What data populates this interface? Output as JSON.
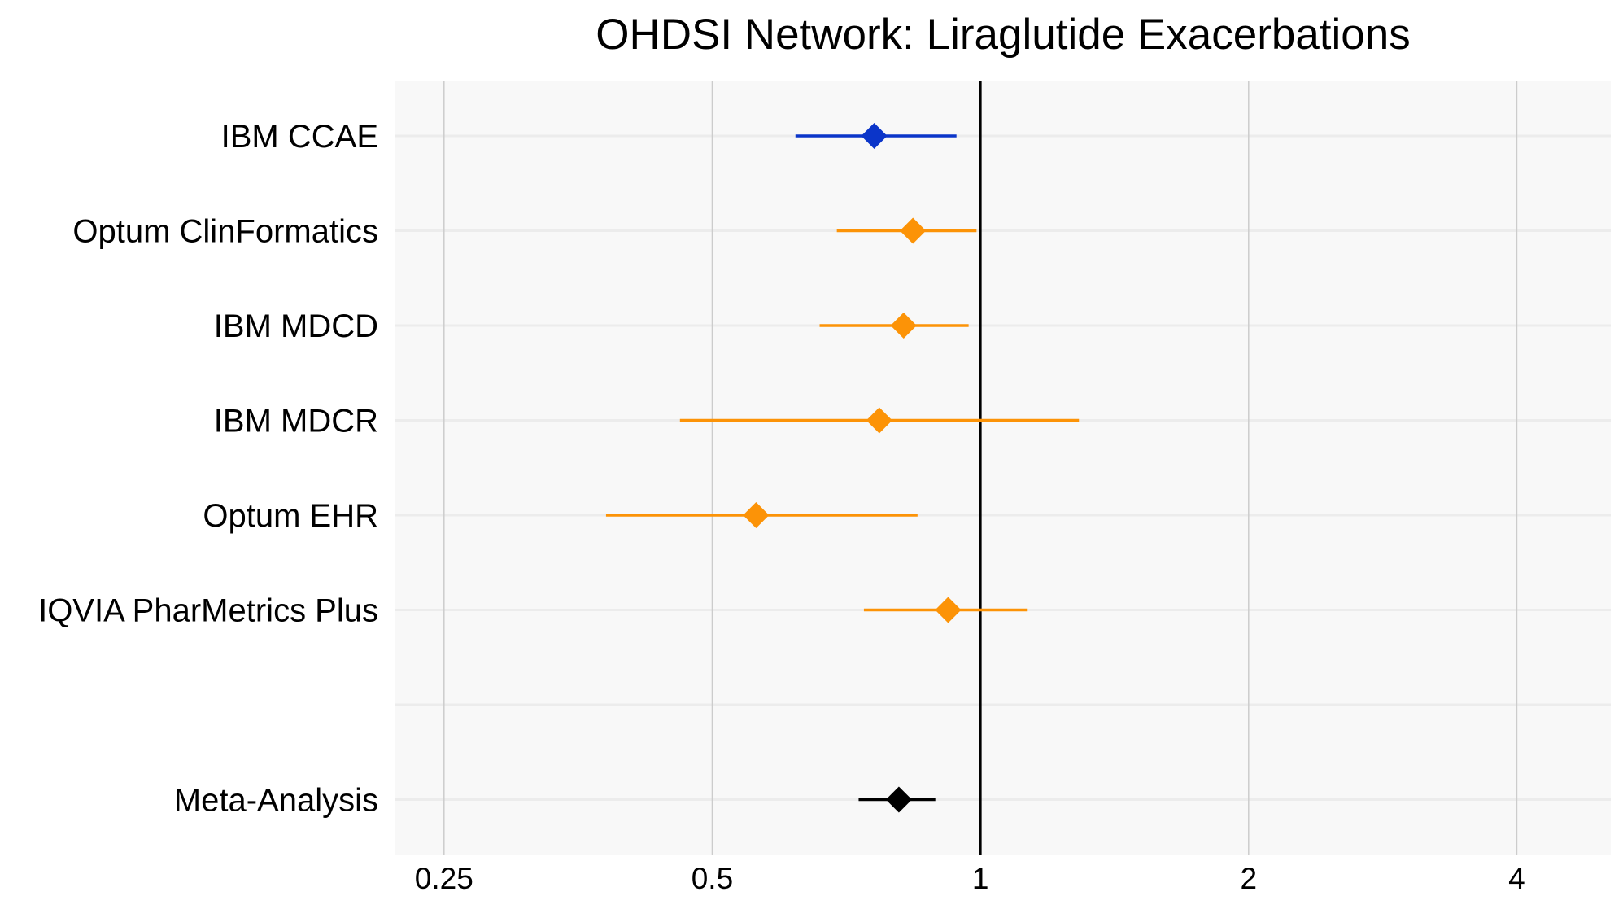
{
  "chart_data": {
    "type": "forest",
    "title": "OHDSI Network: Liraglutide Exacerbations",
    "xlabel": "",
    "ylabel": "",
    "x_scale": "log2",
    "xlim": [
      0.22,
      5.1
    ],
    "x_ticks": [
      0.25,
      0.5,
      1,
      2,
      4
    ],
    "x_tick_labels": [
      "0.25",
      "0.5",
      "1",
      "2",
      "4"
    ],
    "reference_line": 1,
    "grid": true,
    "legend": "none",
    "colors": {
      "highlight": "#0b35c9",
      "database": "#fc9307",
      "meta": "#000000",
      "panel_background": "#f8f8f8",
      "grid_major": "#cccccc",
      "grid_row": "#ececec",
      "reference": "#000000"
    },
    "rows": [
      {
        "label": "IBM CCAE",
        "estimate": 0.76,
        "lower": 0.62,
        "upper": 0.94,
        "color": "#0b35c9"
      },
      {
        "label": "Optum ClinFormatics",
        "estimate": 0.84,
        "lower": 0.69,
        "upper": 0.99,
        "color": "#fc9307"
      },
      {
        "label": "IBM MDCD",
        "estimate": 0.82,
        "lower": 0.66,
        "upper": 0.97,
        "color": "#fc9307"
      },
      {
        "label": "IBM MDCR",
        "estimate": 0.77,
        "lower": 0.46,
        "upper": 1.29,
        "color": "#fc9307"
      },
      {
        "label": "Optum EHR",
        "estimate": 0.56,
        "lower": 0.38,
        "upper": 0.85,
        "color": "#fc9307"
      },
      {
        "label": "IQVIA PharMetrics Plus",
        "estimate": 0.92,
        "lower": 0.74,
        "upper": 1.13,
        "color": "#fc9307"
      },
      {
        "label": "",
        "estimate": null,
        "lower": null,
        "upper": null,
        "color": ""
      },
      {
        "label": "Meta-Analysis",
        "estimate": 0.81,
        "lower": 0.73,
        "upper": 0.89,
        "color": "#000000"
      }
    ]
  }
}
